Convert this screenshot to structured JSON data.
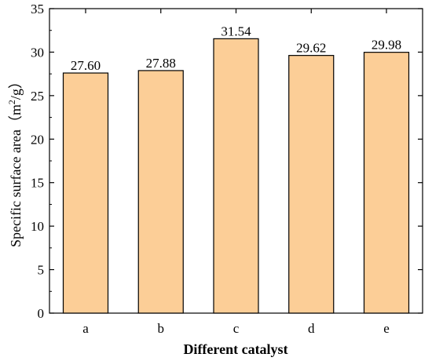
{
  "chart_data": {
    "type": "bar",
    "categories": [
      "a",
      "b",
      "c",
      "d",
      "e"
    ],
    "values": [
      27.6,
      27.88,
      31.54,
      29.62,
      29.98
    ],
    "value_labels": [
      "27.60",
      "27.88",
      "31.54",
      "29.62",
      "29.98"
    ],
    "title": "",
    "xlabel": "Different catalyst",
    "ylabel_prefix": "Specific surface area（m",
    "ylabel_sup": "2",
    "ylabel_suffix": "/g）",
    "ylim": [
      0,
      35
    ],
    "yticks": [
      0,
      5,
      10,
      15,
      20,
      25,
      30,
      35
    ],
    "ytick_labels": [
      "0",
      "5",
      "10",
      "15",
      "20",
      "25",
      "30",
      "35"
    ],
    "grid": false,
    "legend": "none",
    "bar_color": "#FCCE97",
    "bar_edge_color": "#000000"
  }
}
